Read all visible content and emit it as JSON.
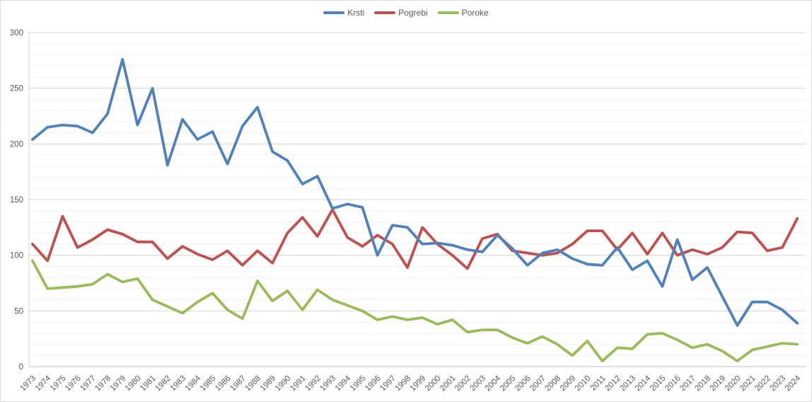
{
  "chart_data": {
    "type": "line",
    "title": "",
    "xlabel": "",
    "ylabel": "",
    "legend_position": "top-center",
    "grid": true,
    "x_categories": [
      "1973",
      "1974",
      "1975",
      "1976",
      "1977",
      "1978",
      "1979",
      "1980",
      "1981",
      "1982",
      "1983",
      "1984",
      "1985",
      "1986",
      "1987",
      "1988",
      "1989",
      "1990",
      "1991",
      "1992",
      "1993",
      "1994",
      "1995",
      "1996",
      "1997",
      "1998",
      "1999",
      "2000",
      "2001",
      "2002",
      "2003",
      "2004",
      "2005",
      "2006",
      "2007",
      "2008",
      "2009",
      "2010",
      "2011",
      "2012",
      "2013",
      "2014",
      "2015",
      "2016",
      "2017",
      "2018",
      "2019",
      "2020",
      "2021",
      "2022",
      "2023",
      "2024"
    ],
    "series": [
      {
        "name": "Krsti",
        "color": "#4F81BD",
        "values": [
          204,
          215,
          217,
          216,
          210,
          227,
          276,
          217,
          250,
          181,
          222,
          204,
          211,
          182,
          216,
          233,
          193,
          185,
          164,
          171,
          142,
          146,
          143,
          100,
          127,
          125,
          110,
          111,
          109,
          105,
          103,
          118,
          106,
          91,
          102,
          105,
          97,
          92,
          91,
          107,
          87,
          95,
          72,
          114,
          78,
          89,
          63,
          37,
          58,
          58,
          51,
          39
        ]
      },
      {
        "name": "Pogrebi",
        "color": "#C0504D",
        "values": [
          110,
          95,
          135,
          107,
          114,
          123,
          119,
          112,
          112,
          97,
          108,
          101,
          96,
          104,
          91,
          104,
          93,
          120,
          134,
          117,
          141,
          116,
          108,
          118,
          110,
          89,
          125,
          110,
          100,
          88,
          115,
          119,
          104,
          102,
          100,
          102,
          110,
          122,
          122,
          105,
          120,
          101,
          120,
          100,
          105,
          101,
          107,
          121,
          120,
          104,
          107,
          133
        ]
      },
      {
        "name": "Poroke",
        "color": "#9BBB59",
        "values": [
          95,
          70,
          71,
          72,
          74,
          83,
          76,
          79,
          60,
          54,
          48,
          58,
          66,
          51,
          43,
          77,
          59,
          68,
          51,
          69,
          60,
          55,
          50,
          42,
          45,
          42,
          44,
          38,
          42,
          31,
          33,
          33,
          26,
          21,
          27,
          20,
          10,
          23,
          5,
          17,
          16,
          29,
          30,
          24,
          17,
          20,
          14,
          5,
          15,
          18,
          21,
          20
        ]
      }
    ],
    "y_axis": {
      "min": 0,
      "max": 300,
      "major_step": 50,
      "minor_step": 10,
      "tick_labels": [
        "0",
        "50",
        "100",
        "150",
        "200",
        "250",
        "300"
      ]
    },
    "colors": {
      "axis_line": "#bfbfbf",
      "major_gridline": "#d6d6d6",
      "minor_gridline": "#f0f0f0",
      "tick_text": "#595959"
    }
  }
}
